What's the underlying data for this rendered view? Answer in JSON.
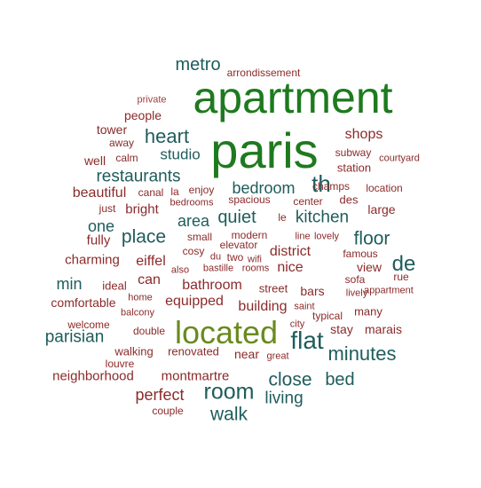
{
  "palette": {
    "green_dark": "#1e7a1e",
    "olive": "#6a8a1e",
    "teal": "#1f5c5c",
    "red": "#8b2a2a",
    "red_light": "#a04040"
  },
  "words": [
    {
      "text": "apartment",
      "color": "#1e7a1e"
    },
    {
      "text": "paris",
      "color": "#1e7a1e"
    },
    {
      "text": "located",
      "color": "#6a8a1e"
    },
    {
      "text": "metro",
      "color": "#1f5c5c"
    },
    {
      "text": "arrondissement",
      "color": "#8b2a2a"
    },
    {
      "text": "private",
      "color": "#a04040"
    },
    {
      "text": "people",
      "color": "#8b2a2a"
    },
    {
      "text": "tower",
      "color": "#8b2a2a"
    },
    {
      "text": "away",
      "color": "#8b2a2a"
    },
    {
      "text": "heart",
      "color": "#1f5c5c"
    },
    {
      "text": "studio",
      "color": "#1f5c5c"
    },
    {
      "text": "well",
      "color": "#8b2a2a"
    },
    {
      "text": "calm",
      "color": "#8b2a2a"
    },
    {
      "text": "shops",
      "color": "#8b2a2a"
    },
    {
      "text": "subway",
      "color": "#8b2a2a"
    },
    {
      "text": "courtyard",
      "color": "#8b2a2a"
    },
    {
      "text": "station",
      "color": "#8b2a2a"
    },
    {
      "text": "restaurants",
      "color": "#1f5c5c"
    },
    {
      "text": "bedroom",
      "color": "#1f5c5c"
    },
    {
      "text": "th",
      "color": "#1f5c5c"
    },
    {
      "text": "champs",
      "color": "#8b2a2a"
    },
    {
      "text": "location",
      "color": "#8b2a2a"
    },
    {
      "text": "beautiful",
      "color": "#8b2a2a"
    },
    {
      "text": "canal",
      "color": "#8b2a2a"
    },
    {
      "text": "la",
      "color": "#8b2a2a"
    },
    {
      "text": "enjoy",
      "color": "#8b2a2a"
    },
    {
      "text": "spacious",
      "color": "#8b2a2a"
    },
    {
      "text": "center",
      "color": "#8b2a2a"
    },
    {
      "text": "des",
      "color": "#8b2a2a"
    },
    {
      "text": "just",
      "color": "#8b2a2a"
    },
    {
      "text": "bright",
      "color": "#8b2a2a"
    },
    {
      "text": "bedrooms",
      "color": "#8b2a2a"
    },
    {
      "text": "large",
      "color": "#8b2a2a"
    },
    {
      "text": "area",
      "color": "#1f5c5c"
    },
    {
      "text": "quiet",
      "color": "#1f5c5c"
    },
    {
      "text": "le",
      "color": "#8b2a2a"
    },
    {
      "text": "kitchen",
      "color": "#1f5c5c"
    },
    {
      "text": "one",
      "color": "#1f5c5c"
    },
    {
      "text": "place",
      "color": "#1f5c5c"
    },
    {
      "text": "small",
      "color": "#8b2a2a"
    },
    {
      "text": "modern",
      "color": "#8b2a2a"
    },
    {
      "text": "line",
      "color": "#8b2a2a"
    },
    {
      "text": "lovely",
      "color": "#8b2a2a"
    },
    {
      "text": "floor",
      "color": "#1f5c5c"
    },
    {
      "text": "fully",
      "color": "#8b2a2a"
    },
    {
      "text": "elevator",
      "color": "#8b2a2a"
    },
    {
      "text": "cosy",
      "color": "#8b2a2a"
    },
    {
      "text": "du",
      "color": "#8b2a2a"
    },
    {
      "text": "two",
      "color": "#8b2a2a"
    },
    {
      "text": "wifi",
      "color": "#8b2a2a"
    },
    {
      "text": "district",
      "color": "#8b2a2a"
    },
    {
      "text": "famous",
      "color": "#8b2a2a"
    },
    {
      "text": "de",
      "color": "#1f5c5c"
    },
    {
      "text": "charming",
      "color": "#8b2a2a"
    },
    {
      "text": "eiffel",
      "color": "#8b2a2a"
    },
    {
      "text": "also",
      "color": "#8b2a2a"
    },
    {
      "text": "bastille",
      "color": "#8b2a2a"
    },
    {
      "text": "rooms",
      "color": "#8b2a2a"
    },
    {
      "text": "nice",
      "color": "#8b2a2a"
    },
    {
      "text": "view",
      "color": "#8b2a2a"
    },
    {
      "text": "sofa",
      "color": "#8b2a2a"
    },
    {
      "text": "min",
      "color": "#1f5c5c"
    },
    {
      "text": "ideal",
      "color": "#8b2a2a"
    },
    {
      "text": "can",
      "color": "#8b2a2a"
    },
    {
      "text": "bathroom",
      "color": "#8b2a2a"
    },
    {
      "text": "street",
      "color": "#8b2a2a"
    },
    {
      "text": "bars",
      "color": "#8b2a2a"
    },
    {
      "text": "rue",
      "color": "#8b2a2a"
    },
    {
      "text": "lively",
      "color": "#8b2a2a"
    },
    {
      "text": "appartment",
      "color": "#8b2a2a"
    },
    {
      "text": "comfortable",
      "color": "#8b2a2a"
    },
    {
      "text": "home",
      "color": "#8b2a2a"
    },
    {
      "text": "equipped",
      "color": "#8b2a2a"
    },
    {
      "text": "building",
      "color": "#8b2a2a"
    },
    {
      "text": "saint",
      "color": "#8b2a2a"
    },
    {
      "text": "many",
      "color": "#8b2a2a"
    },
    {
      "text": "balcony",
      "color": "#8b2a2a"
    },
    {
      "text": "typical",
      "color": "#8b2a2a"
    },
    {
      "text": "welcome",
      "color": "#8b2a2a"
    },
    {
      "text": "city",
      "color": "#8b2a2a"
    },
    {
      "text": "parisian",
      "color": "#1f5c5c"
    },
    {
      "text": "double",
      "color": "#8b2a2a"
    },
    {
      "text": "flat",
      "color": "#1f5c5c"
    },
    {
      "text": "stay",
      "color": "#8b2a2a"
    },
    {
      "text": "marais",
      "color": "#8b2a2a"
    },
    {
      "text": "walking",
      "color": "#8b2a2a"
    },
    {
      "text": "renovated",
      "color": "#8b2a2a"
    },
    {
      "text": "near",
      "color": "#8b2a2a"
    },
    {
      "text": "great",
      "color": "#8b2a2a"
    },
    {
      "text": "minutes",
      "color": "#1f5c5c"
    },
    {
      "text": "louvre",
      "color": "#8b2a2a"
    },
    {
      "text": "neighborhood",
      "color": "#8b2a2a"
    },
    {
      "text": "montmartre",
      "color": "#8b2a2a"
    },
    {
      "text": "close",
      "color": "#1f5c5c"
    },
    {
      "text": "bed",
      "color": "#1f5c5c"
    },
    {
      "text": "room",
      "color": "#1f5c5c"
    },
    {
      "text": "perfect",
      "color": "#8b2a2a"
    },
    {
      "text": "living",
      "color": "#1f5c5c"
    },
    {
      "text": "couple",
      "color": "#8b2a2a"
    },
    {
      "text": "walk",
      "color": "#1f5c5c"
    }
  ]
}
